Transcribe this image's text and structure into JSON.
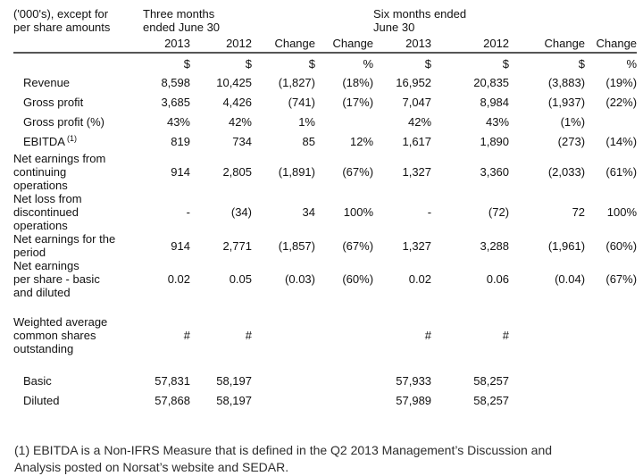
{
  "colors": {
    "background": "#ffffff",
    "table_text": "#111111",
    "header_rule": "#555555",
    "footnote_text": "#2d2d2d"
  },
  "table": {
    "corner_label": "('000's), except for\nper share amounts",
    "group_headers": [
      {
        "label": "Three months\nended June 30"
      },
      {
        "label": "Six months ended\nJune 30"
      }
    ],
    "year_headers": [
      "2013",
      "2012",
      "Change",
      "Change",
      "2013",
      "2012",
      "Change",
      "Change"
    ],
    "unit_row": [
      "$",
      "$",
      "$",
      "%",
      "$",
      "$",
      "$",
      "%"
    ],
    "rows": [
      {
        "label": "Revenue",
        "values": [
          "8,598",
          "10,425",
          "(1,827)",
          "(18%)",
          "16,952",
          "20,835",
          "(3,883)",
          "(19%)"
        ]
      },
      {
        "label": "Gross profit",
        "values": [
          "3,685",
          "4,426",
          "(741)",
          "(17%)",
          "7,047",
          "8,984",
          "(1,937)",
          "(22%)"
        ]
      },
      {
        "label": "Gross profit (%)",
        "values": [
          "43%",
          "42%",
          "1%",
          "",
          "42%",
          "43%",
          "(1%)",
          ""
        ]
      },
      {
        "label": "EBITDA",
        "label_superscript": "(1)",
        "values": [
          "819",
          "734",
          "85",
          "12%",
          "1,617",
          "1,890",
          "(273)",
          "(14%)"
        ]
      },
      {
        "label": "Net earnings from\ncontinuing\noperations",
        "values": [
          "914",
          "2,805",
          "(1,891)",
          "(67%)",
          "1,327",
          "3,360",
          "(2,033)",
          "(61%)"
        ]
      },
      {
        "label": "Net loss from\ndiscontinued\noperations",
        "values": [
          "-",
          "(34)",
          "34",
          "100%",
          "-",
          "(72)",
          "72",
          "100%"
        ]
      },
      {
        "label": "Net earnings for the\nperiod",
        "values": [
          "914",
          "2,771",
          "(1,857)",
          "(67%)",
          "1,327",
          "3,288",
          "(1,961)",
          "(60%)"
        ]
      },
      {
        "label": "Net earnings\nper share - basic\nand diluted",
        "values": [
          "0.02",
          "0.05",
          "(0.03)",
          "(60%)",
          "0.02",
          "0.06",
          "(0.04)",
          "(67%)"
        ]
      },
      {
        "spacer": true
      },
      {
        "label": "Weighted average\ncommon shares\noutstanding",
        "values": [
          "#",
          "#",
          "",
          "",
          "#",
          "#",
          "",
          ""
        ]
      },
      {
        "spacer": true
      },
      {
        "label": "Basic",
        "values": [
          "57,831",
          "58,197",
          "",
          "",
          "57,933",
          "58,257",
          "",
          ""
        ]
      },
      {
        "label": "Diluted",
        "values": [
          "57,868",
          "58,197",
          "",
          "",
          "57,989",
          "58,257",
          "",
          ""
        ]
      }
    ]
  },
  "footnote": "(1) EBITDA is a Non-IFRS Measure that is defined in the Q2 2013 Management’s Discussion and\nAnalysis posted on Norsat’s website and SEDAR."
}
